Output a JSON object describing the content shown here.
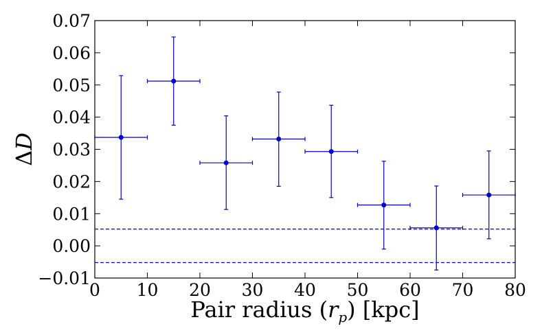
{
  "chart_data": {
    "type": "scatter",
    "xlabel": "Pair radius (r_p) [kpc]",
    "xlabel_parts": {
      "before": "Pair radius (",
      "var": "r",
      "sub": "p",
      "after": ") [kpc]"
    },
    "ylabel": "ΔD",
    "ylabel_parts": {
      "symbol": "Δ",
      "var": "D"
    },
    "xlim": [
      0,
      80
    ],
    "ylim": [
      -0.01,
      0.07
    ],
    "xticks": [
      0,
      10,
      20,
      30,
      40,
      50,
      60,
      70,
      80
    ],
    "xtick_labels": [
      "0",
      "10",
      "20",
      "30",
      "40",
      "50",
      "60",
      "70",
      "80"
    ],
    "yticks": [
      -0.01,
      0.0,
      0.01,
      0.02,
      0.03,
      0.04,
      0.05,
      0.06,
      0.07
    ],
    "ytick_labels": [
      "−0.01",
      "0.00",
      "0.01",
      "0.02",
      "0.03",
      "0.04",
      "0.05",
      "0.06",
      "0.07"
    ],
    "grid": false,
    "color": "#0000cc",
    "series": [
      {
        "x": [
          5,
          15,
          25,
          35,
          45,
          55,
          65,
          75
        ],
        "y": [
          0.0337,
          0.0512,
          0.0258,
          0.0332,
          0.0293,
          0.0127,
          0.0056,
          0.0158
        ],
        "xerr": [
          5,
          5,
          5,
          5,
          5,
          5,
          5,
          5
        ],
        "yerr_low": [
          0.0192,
          0.0137,
          0.0145,
          0.0147,
          0.0143,
          0.0137,
          0.0131,
          0.0136
        ],
        "yerr_high": [
          0.0192,
          0.0137,
          0.0146,
          0.0146,
          0.0144,
          0.0136,
          0.013,
          0.0137
        ]
      }
    ],
    "reference_lines": [
      {
        "orientation": "horizontal",
        "y": 0.0052,
        "style": "dashed"
      },
      {
        "orientation": "horizontal",
        "y": -0.0052,
        "style": "dashed"
      }
    ]
  }
}
